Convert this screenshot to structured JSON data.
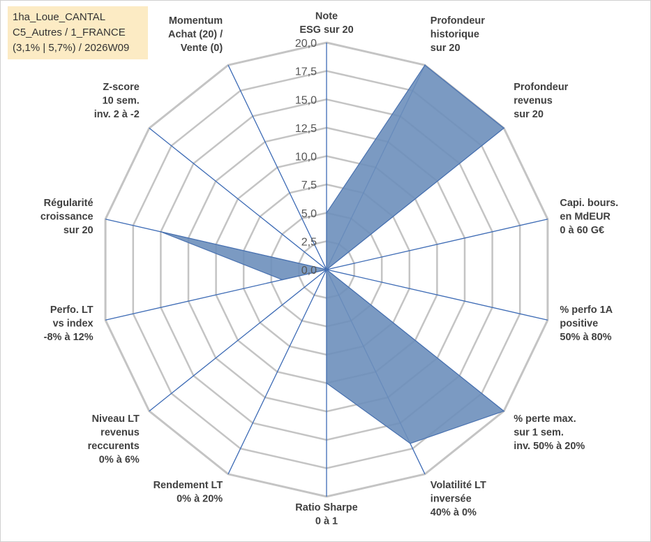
{
  "info_box": {
    "line1": "1ha_Loue_CANTAL",
    "line2": "C5_Autres / 1_FRANCE",
    "line3": "(3,1% | 5,7%) / 2026W09"
  },
  "colors": {
    "fill": "#6d8fbb",
    "stroke": "#4a72b0",
    "grid": "#c4c4c4",
    "spoke": "#3d6bb5",
    "info_bg": "#fcebc4"
  },
  "chart_data": {
    "type": "radar",
    "rmax": 20,
    "ticks": [
      "0,0",
      "2,5",
      "5,0",
      "7,5",
      "10,0",
      "12,5",
      "15,0",
      "17,5",
      "20,0"
    ],
    "grid": true,
    "axes": [
      {
        "label": [
          "Note",
          "ESG sur 20"
        ],
        "value": 5
      },
      {
        "label": [
          "Profondeur",
          "historique",
          "sur 20"
        ],
        "value": 20
      },
      {
        "label": [
          "Profondeur",
          "revenus",
          "sur 20"
        ],
        "value": 20
      },
      {
        "label": [
          "Capi. bours.",
          "en MdEUR",
          "0 à 60 G€"
        ],
        "value": 0
      },
      {
        "label": [
          "% perfo 1A",
          "positive",
          "50% à 80%"
        ],
        "value": 0
      },
      {
        "label": [
          "% perte max.",
          "sur 1 sem.",
          "inv. 50% à 20%"
        ],
        "value": 20
      },
      {
        "label": [
          "Volatilité LT",
          "inversée",
          "40% à 0%"
        ],
        "value": 17
      },
      {
        "label": [
          "Ratio Sharpe",
          "0 à 1"
        ],
        "value": 10
      },
      {
        "label": [
          "Rendement LT",
          "0% à 20%"
        ],
        "value": 0
      },
      {
        "label": [
          "Niveau LT",
          "revenus",
          "reccurents",
          "0% à 6%"
        ],
        "value": 0
      },
      {
        "label": [
          "Perfo. LT",
          "vs index",
          "-8% à 12%"
        ],
        "value": 4
      },
      {
        "label": [
          "Régularité",
          "croissance",
          "sur 20"
        ],
        "value": 15
      },
      {
        "label": [
          "Z-score",
          "10 sem.",
          "inv. 2 à -2"
        ],
        "value": 0
      },
      {
        "label": [
          "Momentum",
          "Achat (20) /",
          "Vente (0)"
        ],
        "value": 0
      }
    ]
  }
}
